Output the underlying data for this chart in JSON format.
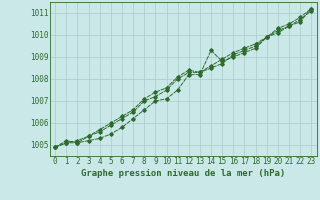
{
  "title": "Graphe pression niveau de la mer (hPa)",
  "background_color": "#cbe8e8",
  "grid_color": "#aacccc",
  "line_color": "#2d6a2d",
  "x_values": [
    0,
    1,
    2,
    3,
    4,
    5,
    6,
    7,
    8,
    9,
    10,
    11,
    12,
    13,
    14,
    15,
    16,
    17,
    18,
    19,
    20,
    21,
    22,
    23
  ],
  "series": [
    [
      1004.9,
      1005.1,
      1005.1,
      1005.2,
      1005.3,
      1005.5,
      1005.8,
      1006.2,
      1006.6,
      1007.0,
      1007.1,
      1007.5,
      1008.2,
      1008.2,
      1009.3,
      1008.8,
      1009.0,
      1009.2,
      1009.4,
      1009.9,
      1010.2,
      1010.4,
      1010.6,
      1011.2
    ],
    [
      1004.9,
      1005.1,
      1005.2,
      1005.4,
      1005.6,
      1005.9,
      1006.2,
      1006.5,
      1007.0,
      1007.2,
      1007.5,
      1008.0,
      1008.3,
      1008.3,
      1008.5,
      1008.7,
      1009.1,
      1009.3,
      1009.5,
      1009.9,
      1010.1,
      1010.4,
      1010.7,
      1011.1
    ],
    [
      1004.9,
      1005.2,
      1005.1,
      1005.4,
      1005.7,
      1006.0,
      1006.3,
      1006.6,
      1007.1,
      1007.4,
      1007.6,
      1008.1,
      1008.4,
      1008.3,
      1008.6,
      1008.9,
      1009.2,
      1009.4,
      1009.6,
      1009.9,
      1010.3,
      1010.5,
      1010.8,
      1011.2
    ]
  ],
  "ylim": [
    1004.5,
    1011.5
  ],
  "yticks": [
    1005,
    1006,
    1007,
    1008,
    1009,
    1010,
    1011
  ],
  "xlim": [
    -0.5,
    23.5
  ],
  "xticks": [
    0,
    1,
    2,
    3,
    4,
    5,
    6,
    7,
    8,
    9,
    10,
    11,
    12,
    13,
    14,
    15,
    16,
    17,
    18,
    19,
    20,
    21,
    22,
    23
  ],
  "tick_fontsize": 5.5,
  "title_fontsize": 6.5,
  "marker": "D",
  "markersize": 1.8,
  "linewidth": 0.7
}
